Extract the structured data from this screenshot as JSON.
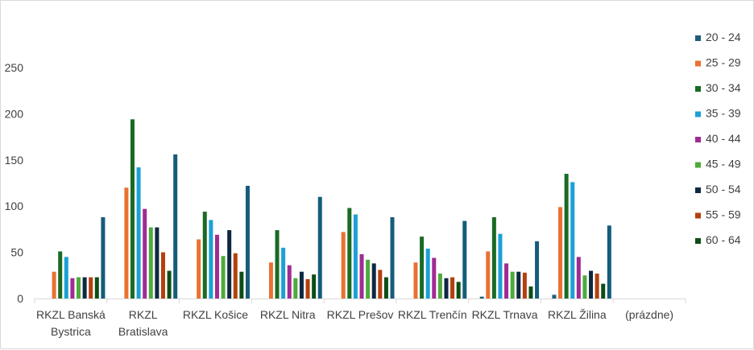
{
  "chart_data": {
    "type": "bar",
    "title": "",
    "xlabel": "",
    "ylabel": "",
    "ylim": [
      0,
      250
    ],
    "yticks": [
      0,
      50,
      100,
      150,
      200,
      250
    ],
    "grid": false,
    "legend_position": "right",
    "categories": [
      "RKZL Banská Bystrica",
      "RKZL Bratislava",
      "RKZL Košice",
      "RKZL Nitra",
      "RKZL Prešov",
      "RKZL Trenčín",
      "RKZL Trnava",
      "RKZL Žilina",
      "(prázdne)"
    ],
    "category_label_lines": [
      [
        "RKZL Banská",
        "Bystrica"
      ],
      [
        "RKZL",
        "Bratislava"
      ],
      [
        "RKZL Košice"
      ],
      [
        "RKZL Nitra"
      ],
      [
        "RKZL Prešov"
      ],
      [
        "RKZL Trenčín"
      ],
      [
        "RKZL Trnava"
      ],
      [
        "RKZL Žilina"
      ],
      [
        "(prázdne)"
      ]
    ],
    "series": [
      {
        "name": "20 - 24",
        "color": "#1f5c7a",
        "values": [
          0,
          0,
          0,
          0,
          0,
          0,
          2,
          4,
          0
        ]
      },
      {
        "name": "25 - 29",
        "color": "#e97132",
        "values": [
          29,
          120,
          64,
          39,
          72,
          39,
          51,
          99,
          0
        ]
      },
      {
        "name": "30 - 34",
        "color": "#196b24",
        "values": [
          51,
          194,
          94,
          74,
          98,
          67,
          88,
          135,
          0
        ]
      },
      {
        "name": "35 - 39",
        "color": "#1ba1d6",
        "values": [
          45,
          142,
          85,
          55,
          91,
          54,
          70,
          126,
          0
        ]
      },
      {
        "name": "40 - 44",
        "color": "#a02b93",
        "values": [
          22,
          97,
          69,
          36,
          48,
          44,
          38,
          45,
          0
        ]
      },
      {
        "name": "45 - 49",
        "color": "#4eab3c",
        "values": [
          23,
          77,
          46,
          22,
          42,
          27,
          29,
          25,
          0
        ]
      },
      {
        "name": "50 - 54",
        "color": "#0e2841",
        "values": [
          23,
          77,
          74,
          29,
          38,
          22,
          29,
          30,
          0
        ]
      },
      {
        "name": "55 - 59",
        "color": "#b4400e",
        "values": [
          23,
          50,
          49,
          21,
          31,
          23,
          28,
          27,
          0
        ]
      },
      {
        "name": "60 - 64",
        "color": "#0e4d16",
        "values": [
          23,
          30,
          29,
          26,
          23,
          18,
          13,
          16,
          0
        ]
      },
      {
        "name": "",
        "color": "#145c7c",
        "values": [
          88,
          156,
          122,
          110,
          88,
          84,
          62,
          79,
          0
        ]
      }
    ]
  }
}
